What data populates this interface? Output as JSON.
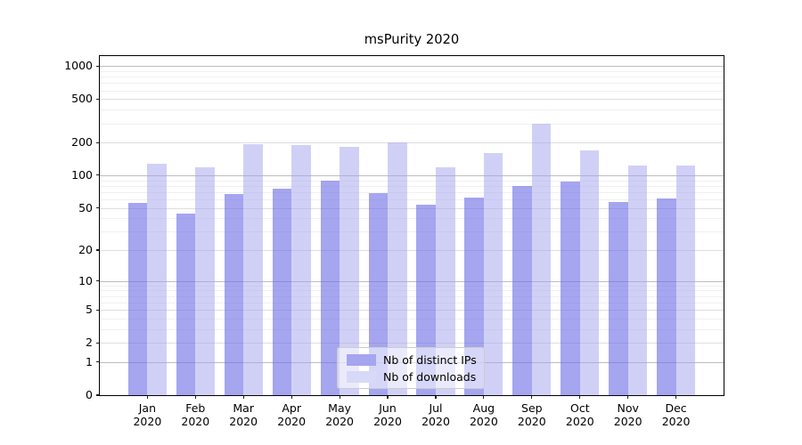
{
  "chart_data": {
    "type": "bar",
    "title": "msPurity 2020",
    "categories": [
      "Jan 2020",
      "Feb 2020",
      "Mar 2020",
      "Apr 2020",
      "May 2020",
      "Jun 2020",
      "Jul 2020",
      "Aug 2020",
      "Sep 2020",
      "Oct 2020",
      "Nov 2020",
      "Dec 2020"
    ],
    "x_tick_months": [
      "Jan",
      "Feb",
      "Mar",
      "Apr",
      "May",
      "Jun",
      "Jul",
      "Aug",
      "Sep",
      "Oct",
      "Nov",
      "Dec"
    ],
    "x_tick_year": "2020",
    "series": [
      {
        "name": "Nb of distinct IPs",
        "color": "#a5a5f0",
        "values": [
          56,
          44,
          67,
          75,
          89,
          68,
          54,
          62,
          80,
          87,
          57,
          61
        ]
      },
      {
        "name": "Nb of downloads",
        "color": "#d8d8f8",
        "values": [
          127,
          119,
          194,
          188,
          184,
          200,
          118,
          161,
          295,
          170,
          124,
          122
        ]
      }
    ],
    "y_axis": {
      "scale": "log1p",
      "ticks": [
        0,
        1,
        2,
        5,
        10,
        20,
        50,
        100,
        200,
        500,
        1000
      ],
      "minor_ticks": [
        3,
        4,
        6,
        7,
        8,
        9,
        30,
        40,
        60,
        70,
        80,
        90,
        300,
        400,
        600,
        700,
        800,
        900
      ],
      "power_ticks": [
        1,
        10,
        100,
        1000
      ],
      "max": 1232
    },
    "legend_position": "lower center",
    "grid": true,
    "colors": {
      "bar_ips": "#a5a5f0",
      "bar_downloads": "#d8d8f8",
      "grid_major": "#bdbdbd",
      "grid_minor": "#f0f0f0",
      "axis": "#000000"
    }
  }
}
